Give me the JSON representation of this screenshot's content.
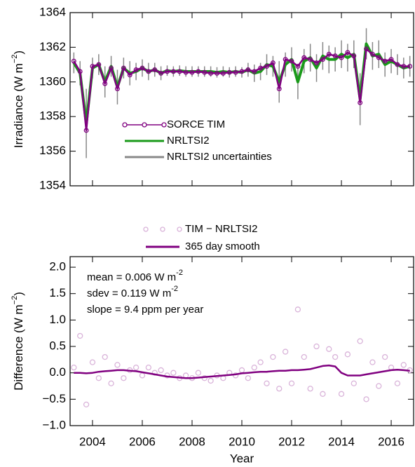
{
  "chart_data": [
    {
      "type": "line",
      "y_label": {
        "text": "Irradiance (W m",
        "superscript": "−2",
        "suffix": ")"
      },
      "x": [
        2003.25,
        2003.5,
        2003.75,
        2004.0,
        2004.25,
        2004.5,
        2004.75,
        2005.0,
        2005.25,
        2005.5,
        2005.75,
        2006.0,
        2006.25,
        2006.5,
        2006.75,
        2007.0,
        2007.25,
        2007.5,
        2007.75,
        2008.0,
        2008.25,
        2008.5,
        2008.75,
        2009.0,
        2009.25,
        2009.5,
        2009.75,
        2010.0,
        2010.25,
        2010.5,
        2010.75,
        2011.0,
        2011.25,
        2011.5,
        2011.75,
        2012.0,
        2012.25,
        2012.5,
        2012.75,
        2013.0,
        2013.25,
        2013.5,
        2013.75,
        2014.0,
        2014.25,
        2014.5,
        2014.75,
        2015.0,
        2015.25,
        2015.5,
        2015.75,
        2016.0,
        2016.25,
        2016.5,
        2016.75
      ],
      "series": [
        {
          "name": "SORCE TIM",
          "color": "#800080",
          "mode": "line-markers",
          "values": [
            1361.2,
            1360.6,
            1357.2,
            1360.9,
            1361.0,
            1359.9,
            1360.8,
            1359.6,
            1360.8,
            1360.4,
            1360.7,
            1360.8,
            1360.6,
            1360.7,
            1360.5,
            1360.6,
            1360.6,
            1360.6,
            1360.55,
            1360.55,
            1360.6,
            1360.55,
            1360.5,
            1360.5,
            1360.5,
            1360.55,
            1360.55,
            1360.6,
            1360.7,
            1360.6,
            1360.8,
            1360.9,
            1361.1,
            1359.6,
            1361.3,
            1361.2,
            1360.9,
            1361.4,
            1361.3,
            1361.1,
            1361.3,
            1361.6,
            1361.5,
            1361.4,
            1361.7,
            1361.5,
            1358.8,
            1361.9,
            1361.6,
            1361.4,
            1361.2,
            1361.3,
            1361.0,
            1360.9,
            1360.9
          ]
        },
        {
          "name": "NRLTSI2",
          "color": "#1a9a1a",
          "mode": "line",
          "values": [
            1361.1,
            1360.5,
            1357.6,
            1360.8,
            1361.0,
            1360.0,
            1360.9,
            1359.7,
            1360.8,
            1360.5,
            1360.6,
            1360.8,
            1360.6,
            1360.7,
            1360.5,
            1360.65,
            1360.6,
            1360.65,
            1360.6,
            1360.6,
            1360.6,
            1360.6,
            1360.6,
            1360.55,
            1360.6,
            1360.55,
            1360.6,
            1360.55,
            1360.7,
            1360.5,
            1360.6,
            1361.0,
            1360.9,
            1360.0,
            1361.0,
            1361.3,
            1360.0,
            1361.2,
            1361.4,
            1360.8,
            1361.5,
            1361.3,
            1361.3,
            1361.6,
            1361.4,
            1361.6,
            1359.0,
            1362.2,
            1361.5,
            1361.6,
            1361.0,
            1361.2,
            1361.0,
            1360.8,
            1360.9
          ]
        },
        {
          "name": "NRLTSI2 uncertainties",
          "color": "#888888",
          "mode": "errorbar",
          "of_series": 1,
          "values": [
            0.6,
            0.7,
            2.0,
            0.6,
            0.6,
            0.9,
            0.6,
            1.0,
            0.6,
            0.7,
            0.5,
            0.5,
            0.5,
            0.4,
            0.4,
            0.3,
            0.3,
            0.3,
            0.3,
            0.3,
            0.3,
            0.3,
            0.3,
            0.3,
            0.3,
            0.3,
            0.3,
            0.3,
            0.4,
            0.5,
            0.5,
            0.6,
            0.6,
            1.2,
            0.7,
            0.7,
            1.0,
            0.7,
            0.8,
            0.8,
            0.8,
            0.8,
            0.7,
            0.8,
            0.8,
            0.8,
            1.5,
            0.9,
            0.8,
            0.8,
            0.7,
            0.7,
            0.6,
            0.6,
            0.6
          ]
        }
      ],
      "xlim": [
        2003.1,
        2016.9
      ],
      "ylim": [
        1354,
        1364
      ],
      "yticks": [
        1354,
        1356,
        1358,
        1360,
        1362,
        1364
      ]
    },
    {
      "type": "scatter",
      "x_label": "Year",
      "y_label": {
        "text": "Difference (W m",
        "superscript": "−2",
        "suffix": ")"
      },
      "annotations": [
        {
          "text": "mean = 0.006 W m",
          "superscript": "-2"
        },
        {
          "text": "sdev = 0.119 W m",
          "superscript": "-2"
        },
        {
          "text": "slope = 9.4 ppm per year"
        }
      ],
      "x": [
        2003.25,
        2003.5,
        2003.75,
        2004.0,
        2004.25,
        2004.5,
        2004.75,
        2005.0,
        2005.25,
        2005.5,
        2005.75,
        2006.0,
        2006.25,
        2006.5,
        2006.75,
        2007.0,
        2007.25,
        2007.5,
        2007.75,
        2008.0,
        2008.25,
        2008.5,
        2008.75,
        2009.0,
        2009.25,
        2009.5,
        2009.75,
        2010.0,
        2010.25,
        2010.5,
        2010.75,
        2011.0,
        2011.25,
        2011.5,
        2011.75,
        2012.0,
        2012.25,
        2012.5,
        2012.75,
        2013.0,
        2013.25,
        2013.5,
        2013.75,
        2014.0,
        2014.25,
        2014.5,
        2014.75,
        2015.0,
        2015.25,
        2015.5,
        2015.75,
        2016.0,
        2016.25,
        2016.5,
        2016.75
      ],
      "series": [
        {
          "name": "TIM − NRLTSI2",
          "color": "#d9b3d9",
          "mode": "markers",
          "values": [
            0.1,
            0.7,
            -0.6,
            0.2,
            -0.1,
            0.3,
            -0.2,
            0.15,
            -0.1,
            0.05,
            0.1,
            -0.05,
            0.1,
            0.0,
            0.05,
            -0.05,
            0.0,
            -0.1,
            -0.05,
            -0.1,
            0.0,
            -0.1,
            -0.15,
            -0.05,
            -0.1,
            0.0,
            -0.05,
            0.05,
            -0.1,
            0.1,
            0.2,
            -0.2,
            0.3,
            -0.3,
            0.4,
            -0.2,
            1.2,
            0.3,
            -0.3,
            0.5,
            -0.4,
            0.45,
            0.3,
            -0.4,
            0.35,
            -0.2,
            0.6,
            -0.5,
            0.2,
            -0.25,
            0.3,
            0.1,
            -0.2,
            0.15,
            0.05
          ]
        },
        {
          "name": "365 day smooth",
          "color": "#800080",
          "mode": "line",
          "values": [
            0.0,
            0.0,
            -0.01,
            0.0,
            0.02,
            0.03,
            0.04,
            0.05,
            0.05,
            0.04,
            0.03,
            0.01,
            -0.01,
            -0.03,
            -0.05,
            -0.07,
            -0.08,
            -0.09,
            -0.1,
            -0.1,
            -0.09,
            -0.08,
            -0.07,
            -0.06,
            -0.05,
            -0.04,
            -0.03,
            -0.01,
            0.0,
            0.01,
            0.02,
            0.02,
            0.03,
            0.04,
            0.04,
            0.05,
            0.05,
            0.06,
            0.07,
            0.1,
            0.13,
            0.14,
            0.12,
            0.0,
            -0.05,
            -0.05,
            -0.05,
            -0.03,
            -0.01,
            0.01,
            0.03,
            0.05,
            0.06,
            0.05,
            0.04
          ]
        }
      ],
      "xlim": [
        2003.1,
        2016.9
      ],
      "xticks": [
        2004,
        2006,
        2008,
        2010,
        2012,
        2014,
        2016
      ],
      "ylim": [
        -1.0,
        2.2
      ],
      "yticks": [
        {
          "value": -1.0,
          "label": "−1.0"
        },
        {
          "value": -0.5,
          "label": "−0.5"
        },
        {
          "value": 0.0,
          "label": "0.0"
        },
        {
          "value": 0.5,
          "label": "0.5"
        },
        {
          "value": 1.0,
          "label": "1.0"
        },
        {
          "value": 1.5,
          "label": "1.5"
        },
        {
          "value": 2.0,
          "label": "2.0"
        }
      ]
    }
  ]
}
